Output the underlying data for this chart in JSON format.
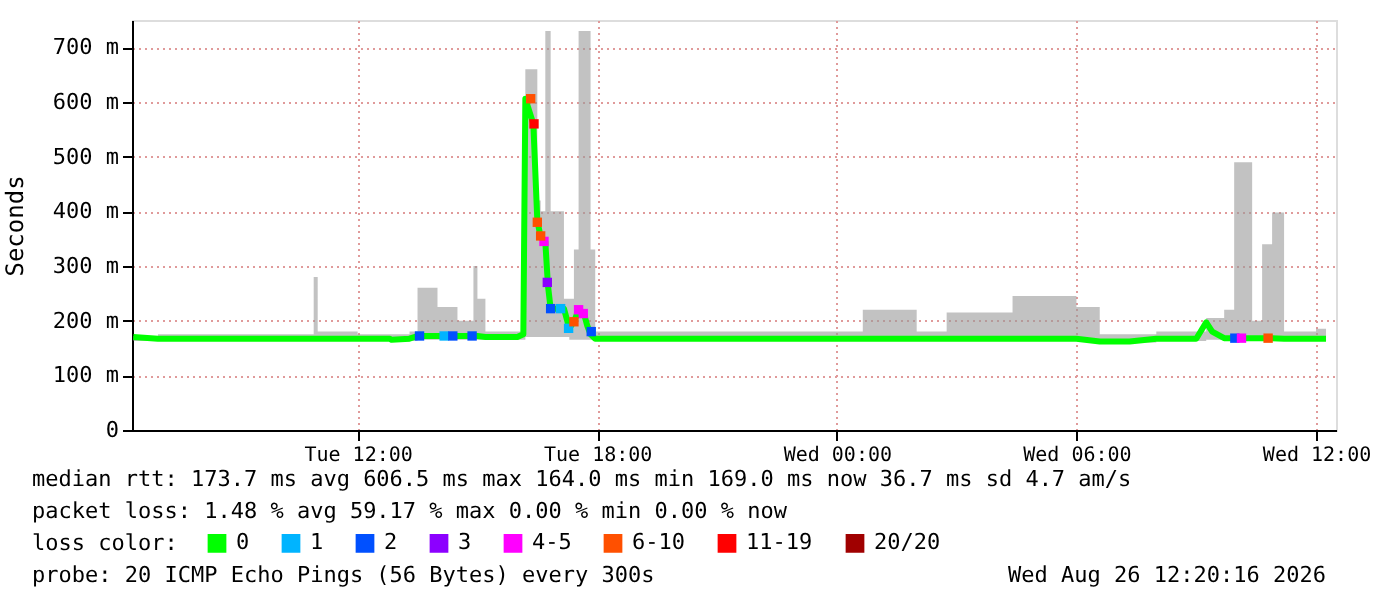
{
  "chart_data": {
    "type": "line",
    "ylabel": "Seconds",
    "legend_title": "loss color:",
    "legend": "bottom",
    "grid": true,
    "xlim": [
      "2026-08-25T06:21",
      "2026-08-26T12:30"
    ],
    "ylim": [
      0,
      750
    ],
    "xticks": [
      {
        "value": "2026-08-25T12:00",
        "label": "Tue 12:00"
      },
      {
        "value": "2026-08-25T18:00",
        "label": "Tue 18:00"
      },
      {
        "value": "2026-08-26T00:00",
        "label": "Wed 00:00"
      },
      {
        "value": "2026-08-26T06:00",
        "label": "Wed 06:00"
      },
      {
        "value": "2026-08-26T12:00",
        "label": "Wed 12:00"
      }
    ],
    "yticks": [
      0,
      {
        "value": 100,
        "label": "100 m"
      },
      {
        "value": 200,
        "label": "200 m"
      },
      {
        "value": 300,
        "label": "300 m"
      },
      {
        "value": 400,
        "label": "400 m"
      },
      {
        "value": 500,
        "label": "500 m"
      },
      {
        "value": 600,
        "label": "600 m"
      },
      {
        "value": 700,
        "label": "700 m"
      }
    ],
    "series": [
      {
        "name": "0",
        "color": "#00ff00",
        "x": [
          "2026-08-25T06:23",
          "2026-08-25T07:00",
          "2026-08-25T08:00",
          "2026-08-25T09:00",
          "2026-08-25T10:00",
          "2026-08-25T10:48",
          "2026-08-25T10:54",
          "2026-08-25T11:00",
          "2026-08-25T12:00",
          "2026-08-25T12:48",
          "2026-08-25T12:51",
          "2026-08-25T13:18",
          "2026-08-25T13:30",
          "2026-08-25T14:00",
          "2026-08-25T14:30",
          "2026-08-25T14:54",
          "2026-08-25T15:00",
          "2026-08-25T15:12",
          "2026-08-25T16:00",
          "2026-08-25T16:09",
          "2026-08-25T16:12",
          "2026-08-25T16:24",
          "2026-08-25T16:30",
          "2026-08-25T16:35",
          "2026-08-25T16:42",
          "2026-08-25T16:46",
          "2026-08-25T16:50",
          "2026-08-25T17:10",
          "2026-08-25T17:18",
          "2026-08-25T17:25",
          "2026-08-25T17:32",
          "2026-08-25T17:40",
          "2026-08-25T17:45",
          "2026-08-25T17:50",
          "2026-08-25T17:57",
          "2026-08-25T19:00",
          "2026-08-25T21:00",
          "2026-08-25T23:00",
          "2026-08-26T00:39",
          "2026-08-26T02:00",
          "2026-08-26T02:45",
          "2026-08-26T04:24",
          "2026-08-26T06:00",
          "2026-08-26T06:35",
          "2026-08-26T07:20",
          "2026-08-26T08:00",
          "2026-08-26T09:00",
          "2026-08-26T09:15",
          "2026-08-26T09:24",
          "2026-08-26T09:42",
          "2026-08-26T09:57",
          "2026-08-26T10:09",
          "2026-08-26T10:24",
          "2026-08-26T10:39",
          "2026-08-26T10:54",
          "2026-08-26T11:12",
          "2026-08-26T12:00",
          "2026-08-26T12:15"
        ],
        "values": [
          170,
          167,
          167,
          167,
          167,
          167,
          167,
          167,
          167,
          167,
          165,
          167,
          172,
          172,
          172,
          172,
          172,
          170,
          170,
          175,
          606,
          560,
          383,
          353,
          344,
          264,
          222,
          222,
          186,
          198,
          220,
          213,
          191,
          175,
          167,
          167,
          167,
          167,
          167,
          167,
          167,
          167,
          167,
          162,
          162,
          167,
          167,
          197,
          180,
          168,
          168,
          168,
          168,
          168,
          168,
          167,
          167,
          167
        ],
        "lower": [
          163,
          163,
          163,
          163,
          163,
          163,
          163,
          163,
          163,
          163,
          162,
          163,
          165,
          165,
          165,
          165,
          165,
          165,
          165,
          165,
          170,
          170,
          170,
          170,
          170,
          170,
          170,
          170,
          165,
          165,
          165,
          165,
          165,
          165,
          163,
          163,
          163,
          163,
          163,
          163,
          163,
          163,
          163,
          160,
          160,
          163,
          163,
          165,
          165,
          165,
          165,
          165,
          165,
          165,
          165,
          163,
          163,
          163
        ],
        "upper": [
          172,
          175,
          175,
          175,
          175,
          175,
          280,
          180,
          175,
          175,
          175,
          180,
          260,
          225,
          200,
          300,
          240,
          180,
          180,
          200,
          660,
          660,
          420,
          400,
          730,
          730,
          400,
          240,
          240,
          330,
          730,
          730,
          730,
          330,
          180,
          180,
          180,
          180,
          220,
          180,
          215,
          245,
          225,
          175,
          175,
          180,
          180,
          205,
          205,
          220,
          490,
          490,
          200,
          340,
          398,
          180,
          185,
          180
        ]
      },
      {
        "name": "1",
        "type": "scatter",
        "marker": "square",
        "color": "#00b4ff",
        "x": [
          "2026-08-25T14:10",
          "2026-08-25T17:05",
          "2026-08-25T17:17"
        ],
        "values": [
          172,
          222,
          186
        ]
      },
      {
        "name": "2",
        "type": "scatter",
        "marker": "square",
        "color": "#0050ff",
        "x": [
          "2026-08-25T13:33",
          "2026-08-25T14:23",
          "2026-08-25T14:52",
          "2026-08-25T16:50",
          "2026-08-25T17:51",
          "2026-08-26T09:58"
        ],
        "values": [
          172,
          172,
          172,
          222,
          180,
          168
        ]
      },
      {
        "name": "3",
        "type": "scatter",
        "marker": "square",
        "color": "#8c00ff",
        "x": [
          "2026-08-25T16:45"
        ],
        "values": [
          270
        ]
      },
      {
        "name": "4-5",
        "type": "scatter",
        "marker": "square",
        "color": "#ff00ff",
        "x": [
          "2026-08-25T16:40",
          "2026-08-25T17:32",
          "2026-08-25T17:39",
          "2026-08-26T10:08"
        ],
        "values": [
          345,
          220,
          213,
          168
        ]
      },
      {
        "name": "6-10",
        "type": "scatter",
        "marker": "square",
        "color": "#ff5000",
        "x": [
          "2026-08-25T16:20",
          "2026-08-25T16:30",
          "2026-08-25T16:35",
          "2026-08-25T17:25",
          "2026-08-26T10:48"
        ],
        "values": [
          606,
          380,
          355,
          198,
          168
        ]
      },
      {
        "name": "11-19",
        "type": "scatter",
        "marker": "square",
        "color": "#ff0000",
        "x": [
          "2026-08-25T16:25"
        ],
        "values": [
          560
        ]
      },
      {
        "name": "20/20",
        "type": "scatter",
        "marker": "square",
        "color": "#a00000"
      }
    ],
    "annotations": [
      "median rtt:  173.7 ms avg  606.5 ms max  164.0 ms min  169.0 ms now  36.7 ms sd  4.7   am/s",
      "packet loss: 1.48 % avg  59.17 % max  0.00 % min  0.00 % now",
      "probe:       20 ICMP Echo Pings (56 Bytes) every 300s",
      "Wed Aug 26 12:20:16 2026"
    ]
  }
}
